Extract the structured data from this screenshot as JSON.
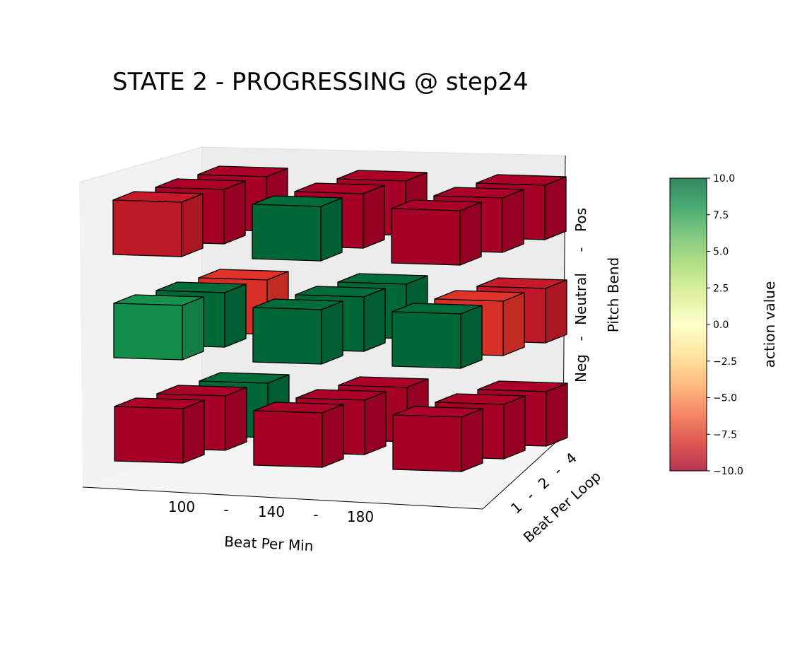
{
  "chart_data": {
    "type": "bar3d",
    "title": "STATE 2 - PROGRESSING @ step24",
    "axes": {
      "x": {
        "label": "Beat Per Min",
        "ticks": [
          "100",
          "-",
          "140",
          "-",
          "180"
        ],
        "categories": [
          "100",
          "140",
          "180"
        ]
      },
      "y": {
        "label": "Beat Per Loop",
        "ticks": [
          "1",
          "-",
          "2",
          "-",
          "4"
        ],
        "categories": [
          "1",
          "2",
          "4"
        ]
      },
      "z": {
        "label": "Pitch Bend",
        "ticks": [
          "Neg",
          "-",
          "Neutral",
          "-",
          "Pos"
        ],
        "categories": [
          "Neg",
          "Neutral",
          "Pos"
        ]
      }
    },
    "colorbar": {
      "label": "action value",
      "range": [
        -10.0,
        10.0
      ],
      "ticks": [
        "10.0",
        "7.5",
        "5.0",
        "2.5",
        "0.0",
        "−2.5",
        "−5.0",
        "−7.5",
        "−10.0"
      ],
      "colormap": "RdYlGn"
    },
    "cells": [
      {
        "bpm": "100",
        "bpl": "1",
        "pitch": "Neg",
        "value": -10
      },
      {
        "bpm": "100",
        "bpl": "2",
        "pitch": "Neg",
        "value": -10
      },
      {
        "bpm": "100",
        "bpl": "4",
        "pitch": "Neg",
        "value": 10
      },
      {
        "bpm": "140",
        "bpl": "1",
        "pitch": "Neg",
        "value": -10
      },
      {
        "bpm": "140",
        "bpl": "2",
        "pitch": "Neg",
        "value": -10
      },
      {
        "bpm": "140",
        "bpl": "4",
        "pitch": "Neg",
        "value": -10
      },
      {
        "bpm": "180",
        "bpl": "1",
        "pitch": "Neg",
        "value": -10
      },
      {
        "bpm": "180",
        "bpl": "2",
        "pitch": "Neg",
        "value": -10
      },
      {
        "bpm": "180",
        "bpl": "4",
        "pitch": "Neg",
        "value": -10
      },
      {
        "bpm": "100",
        "bpl": "1",
        "pitch": "Neutral",
        "value": 8.5
      },
      {
        "bpm": "100",
        "bpl": "2",
        "pitch": "Neutral",
        "value": 10
      },
      {
        "bpm": "100",
        "bpl": "4",
        "pitch": "Neutral",
        "value": -8
      },
      {
        "bpm": "140",
        "bpl": "1",
        "pitch": "Neutral",
        "value": 10
      },
      {
        "bpm": "140",
        "bpl": "2",
        "pitch": "Neutral",
        "value": 10
      },
      {
        "bpm": "140",
        "bpl": "4",
        "pitch": "Neutral",
        "value": 10
      },
      {
        "bpm": "180",
        "bpl": "1",
        "pitch": "Neutral",
        "value": 10
      },
      {
        "bpm": "180",
        "bpl": "2",
        "pitch": "Neutral",
        "value": -8
      },
      {
        "bpm": "180",
        "bpl": "4",
        "pitch": "Neutral",
        "value": -9
      },
      {
        "bpm": "100",
        "bpl": "1",
        "pitch": "Pos",
        "value": -9
      },
      {
        "bpm": "100",
        "bpl": "2",
        "pitch": "Pos",
        "value": -10
      },
      {
        "bpm": "100",
        "bpl": "4",
        "pitch": "Pos",
        "value": -10
      },
      {
        "bpm": "140",
        "bpl": "1",
        "pitch": "Pos",
        "value": 10
      },
      {
        "bpm": "140",
        "bpl": "2",
        "pitch": "Pos",
        "value": -10
      },
      {
        "bpm": "140",
        "bpl": "4",
        "pitch": "Pos",
        "value": -10
      },
      {
        "bpm": "180",
        "bpl": "1",
        "pitch": "Pos",
        "value": -10
      },
      {
        "bpm": "180",
        "bpl": "2",
        "pitch": "Pos",
        "value": -10
      },
      {
        "bpm": "180",
        "bpl": "4",
        "pitch": "Pos",
        "value": -10
      }
    ]
  }
}
